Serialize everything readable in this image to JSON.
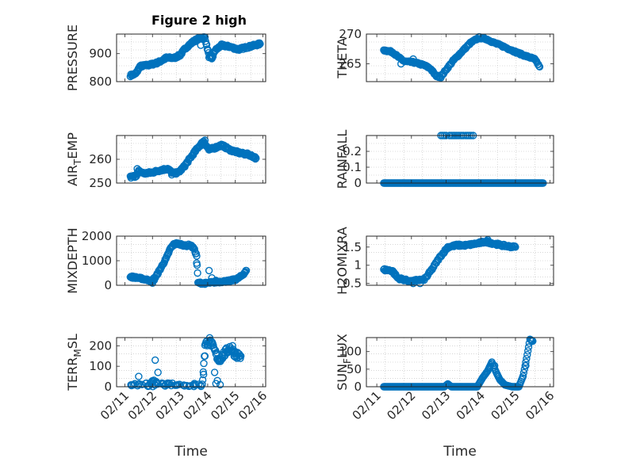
{
  "figure": {
    "title": "Figure 2 high",
    "marker_color": "#0072BD",
    "axis_color": "#262626"
  },
  "chart_data": [
    {
      "type": "scatter",
      "title": "Figure 2 high",
      "ylabel": "PRESSURE",
      "ylabel_sub": "",
      "ylim": [
        800,
        970
      ],
      "yticks": [
        800,
        900
      ],
      "xlim": [
        0,
        5.4
      ],
      "xticks": [
        0.3,
        1.3,
        2.3,
        3.3,
        4.3,
        5.3
      ],
      "xticklabels": [
        "02/11",
        "02/12",
        "02/13",
        "02/14",
        "02/15",
        "02/16"
      ],
      "xlabel": "",
      "keys": [
        [
          0.5,
          822
        ],
        [
          0.7,
          828
        ],
        [
          0.85,
          855
        ],
        [
          1.2,
          860
        ],
        [
          1.5,
          868
        ],
        [
          1.8,
          885
        ],
        [
          2.1,
          885
        ],
        [
          2.3,
          895
        ],
        [
          2.5,
          920
        ],
        [
          2.8,
          945
        ],
        [
          3.0,
          955
        ],
        [
          3.2,
          958
        ],
        [
          3.35,
          890
        ],
        [
          3.45,
          880
        ],
        [
          3.55,
          910
        ],
        [
          3.8,
          930
        ],
        [
          4.1,
          925
        ],
        [
          4.4,
          915
        ],
        [
          4.8,
          925
        ],
        [
          5.2,
          935
        ]
      ],
      "spikes": [
        [
          3.05,
          930
        ],
        [
          3.3,
          915
        ],
        [
          3.5,
          900
        ]
      ],
      "noise": 4
    },
    {
      "type": "scatter",
      "ylabel": "THETA",
      "ylabel_sub": "",
      "ylim": [
        262,
        270
      ],
      "yticks": [
        265,
        270
      ],
      "xlim": [
        0,
        5.4
      ],
      "xticks": [
        0.3,
        1.3,
        2.3,
        3.3,
        4.3,
        5.3
      ],
      "xticklabels": [
        "02/11",
        "02/12",
        "02/13",
        "02/14",
        "02/15",
        "02/16"
      ],
      "xlabel": "",
      "keys": [
        [
          0.5,
          267.3
        ],
        [
          0.75,
          267.0
        ],
        [
          0.9,
          266.2
        ],
        [
          1.1,
          265.4
        ],
        [
          1.4,
          265.2
        ],
        [
          1.65,
          264.8
        ],
        [
          1.85,
          264.2
        ],
        [
          2.0,
          263.0
        ],
        [
          2.15,
          262.8
        ],
        [
          2.3,
          264.0
        ],
        [
          2.5,
          265.5
        ],
        [
          2.75,
          267.0
        ],
        [
          3.0,
          268.5
        ],
        [
          3.25,
          269.4
        ],
        [
          3.45,
          269.2
        ],
        [
          3.7,
          268.5
        ],
        [
          4.0,
          267.8
        ],
        [
          4.3,
          267.0
        ],
        [
          4.6,
          266.3
        ],
        [
          4.85,
          265.8
        ],
        [
          5.0,
          264.5
        ]
      ],
      "spikes": [
        [
          1.0,
          265.0
        ],
        [
          1.35,
          265.8
        ],
        [
          2.1,
          262.9
        ]
      ],
      "noise": 0.15
    },
    {
      "type": "scatter",
      "ylabel": "AIR",
      "ylabel_sub": "T",
      "ylabel_tail": "EMP",
      "ylim": [
        250,
        270
      ],
      "yticks": [
        250,
        260
      ],
      "xlim": [
        0,
        5.4
      ],
      "xticks": [
        0.3,
        1.3,
        2.3,
        3.3,
        4.3,
        5.3
      ],
      "xticklabels": [
        "02/11",
        "02/12",
        "02/13",
        "02/14",
        "02/15",
        "02/16"
      ],
      "xlabel": "",
      "keys": [
        [
          0.5,
          252.5
        ],
        [
          0.7,
          253.0
        ],
        [
          0.8,
          255.0
        ],
        [
          1.0,
          254.0
        ],
        [
          1.3,
          254.5
        ],
        [
          1.6,
          255.5
        ],
        [
          1.85,
          256.0
        ],
        [
          2.05,
          254.0
        ],
        [
          2.25,
          254.5
        ],
        [
          2.45,
          257.0
        ],
        [
          2.7,
          261.0
        ],
        [
          2.95,
          265.0
        ],
        [
          3.15,
          267.5
        ],
        [
          3.35,
          264.0
        ],
        [
          3.6,
          265.0
        ],
        [
          3.8,
          266.0
        ],
        [
          4.1,
          264.0
        ],
        [
          4.5,
          262.5
        ],
        [
          4.8,
          262.0
        ],
        [
          5.05,
          260.5
        ]
      ],
      "spikes": [
        [
          0.75,
          256.0
        ],
        [
          2.0,
          253.5
        ],
        [
          3.2,
          268.0
        ]
      ],
      "noise": 0.5
    },
    {
      "type": "scatter",
      "ylabel": "RAINFALL",
      "ylabel_sub": "",
      "ylim": [
        0,
        0.3
      ],
      "yticks": [
        0,
        0.1,
        0.2
      ],
      "xlim": [
        0,
        5.4
      ],
      "xticks": [
        0.3,
        1.3,
        2.3,
        3.3,
        4.3,
        5.3
      ],
      "xticklabels": [
        "02/11",
        "02/12",
        "02/13",
        "02/14",
        "02/15",
        "02/16"
      ],
      "xlabel": "",
      "keys": [
        [
          0.5,
          0
        ],
        [
          5.1,
          0
        ]
      ],
      "extra": [
        [
          2.15,
          0.3
        ],
        [
          2.2,
          0.3
        ],
        [
          2.25,
          0.3
        ],
        [
          2.3,
          0.3
        ],
        [
          2.4,
          0.3
        ],
        [
          2.45,
          0.3
        ],
        [
          2.5,
          0.3
        ],
        [
          2.55,
          0.3
        ],
        [
          2.6,
          0.3
        ],
        [
          2.65,
          0.3
        ],
        [
          2.7,
          0.3
        ],
        [
          2.75,
          0.3
        ],
        [
          2.8,
          0.3
        ],
        [
          2.87,
          0.3
        ],
        [
          2.92,
          0.3
        ],
        [
          2.97,
          0.3
        ],
        [
          3.02,
          0.3
        ],
        [
          3.08,
          0.3
        ]
      ],
      "noise": 0
    },
    {
      "type": "scatter",
      "ylabel": "MIXDEPTH",
      "ylabel_sub": "",
      "ylim": [
        0,
        2000
      ],
      "yticks": [
        0,
        1000,
        2000
      ],
      "xlim": [
        0,
        5.4
      ],
      "xticks": [
        0.3,
        1.3,
        2.3,
        3.3,
        4.3,
        5.3
      ],
      "xticklabels": [
        "02/11",
        "02/12",
        "02/13",
        "02/14",
        "02/15",
        "02/16"
      ],
      "xlabel": "",
      "keys": [
        [
          0.5,
          350
        ],
        [
          0.8,
          300
        ],
        [
          1.0,
          250
        ],
        [
          1.2,
          200
        ],
        [
          1.3,
          120
        ],
        [
          1.45,
          400
        ],
        [
          1.6,
          700
        ],
        [
          1.8,
          1100
        ],
        [
          1.95,
          1500
        ],
        [
          2.1,
          1700
        ],
        [
          2.3,
          1680
        ],
        [
          2.5,
          1600
        ],
        [
          2.65,
          1650
        ],
        [
          2.8,
          1500
        ],
        [
          2.9,
          1200
        ],
        [
          2.95,
          100
        ],
        [
          3.2,
          80
        ],
        [
          3.5,
          120
        ],
        [
          3.8,
          150
        ],
        [
          4.1,
          180
        ],
        [
          4.35,
          250
        ],
        [
          4.55,
          400
        ],
        [
          4.7,
          600
        ]
      ],
      "spikes": [
        [
          1.35,
          300
        ],
        [
          1.5,
          500
        ],
        [
          2.9,
          900
        ],
        [
          3.35,
          600
        ],
        [
          3.45,
          300
        ],
        [
          3.6,
          200
        ],
        [
          4.2,
          250
        ]
      ],
      "noise": 40
    },
    {
      "type": "scatter",
      "ylabel": "H2OMIXRA",
      "ylabel_sub": "",
      "ylim": [
        0.45,
        1.8
      ],
      "yticks": [
        0.5,
        1,
        1.5
      ],
      "xlim": [
        0,
        5.4
      ],
      "xticks": [
        0.3,
        1.3,
        2.3,
        3.3,
        4.3,
        5.3
      ],
      "xticklabels": [
        "02/11",
        "02/12",
        "02/13",
        "02/14",
        "02/15",
        "02/16"
      ],
      "xlabel": "",
      "keys": [
        [
          0.5,
          0.88
        ],
        [
          0.75,
          0.85
        ],
        [
          0.9,
          0.65
        ],
        [
          1.1,
          0.6
        ],
        [
          1.3,
          0.55
        ],
        [
          1.5,
          0.6
        ],
        [
          1.65,
          0.6
        ],
        [
          1.75,
          0.7
        ],
        [
          1.9,
          0.9
        ],
        [
          2.1,
          1.2
        ],
        [
          2.35,
          1.5
        ],
        [
          2.6,
          1.55
        ],
        [
          2.9,
          1.55
        ],
        [
          3.2,
          1.6
        ],
        [
          3.45,
          1.65
        ],
        [
          3.65,
          1.6
        ],
        [
          3.9,
          1.55
        ],
        [
          4.1,
          1.52
        ],
        [
          4.3,
          1.5
        ]
      ],
      "spikes": [
        [
          0.8,
          0.75
        ],
        [
          1.35,
          0.5
        ],
        [
          1.55,
          0.5
        ],
        [
          1.85,
          0.85
        ],
        [
          3.5,
          1.7
        ],
        [
          3.8,
          1.6
        ]
      ],
      "noise": 0.03
    },
    {
      "type": "scatter",
      "ylabel": "TERR",
      "ylabel_sub": "M",
      "ylabel_tail": "SL",
      "ylim": [
        0,
        240
      ],
      "yticks": [
        0,
        100,
        200
      ],
      "xlim": [
        0,
        5.4
      ],
      "xticks": [
        0.3,
        1.3,
        2.3,
        3.3,
        4.3,
        5.3
      ],
      "xticklabels": [
        "02/11",
        "02/12",
        "02/13",
        "02/14",
        "02/15",
        "02/16"
      ],
      "xlabel": "Time",
      "keys": [
        [
          0.5,
          0
        ],
        [
          1.2,
          0
        ],
        [
          1.35,
          20
        ],
        [
          1.5,
          0
        ],
        [
          3.1,
          0
        ],
        [
          3.2,
          200
        ],
        [
          3.35,
          230
        ],
        [
          3.5,
          190
        ],
        [
          3.7,
          130
        ],
        [
          3.9,
          160
        ],
        [
          4.1,
          190
        ],
        [
          4.3,
          160
        ],
        [
          4.5,
          150
        ]
      ],
      "spikes": [
        [
          0.8,
          50
        ],
        [
          1.4,
          130
        ],
        [
          1.5,
          70
        ],
        [
          3.15,
          60
        ],
        [
          3.2,
          150
        ],
        [
          3.55,
          70
        ],
        [
          3.6,
          15
        ],
        [
          3.65,
          30
        ],
        [
          3.75,
          10
        ],
        [
          4.2,
          200
        ]
      ],
      "noise": 18
    },
    {
      "type": "scatter",
      "ylabel": "SUN",
      "ylabel_sub": "F",
      "ylabel_tail": "LUX",
      "ylim": [
        0,
        140
      ],
      "yticks": [
        0,
        50,
        100
      ],
      "xlim": [
        0,
        5.4
      ],
      "xticks": [
        0.3,
        1.3,
        2.3,
        3.3,
        4.3,
        5.3
      ],
      "xticklabels": [
        "02/11",
        "02/12",
        "02/13",
        "02/14",
        "02/15",
        "02/16"
      ],
      "xlabel": "Time",
      "keys": [
        [
          0.5,
          0
        ],
        [
          2.25,
          0
        ],
        [
          2.35,
          8
        ],
        [
          2.45,
          0
        ],
        [
          3.2,
          0
        ],
        [
          3.35,
          25
        ],
        [
          3.5,
          45
        ],
        [
          3.62,
          70
        ],
        [
          3.75,
          40
        ],
        [
          3.85,
          20
        ],
        [
          4.0,
          5
        ],
        [
          4.2,
          0
        ],
        [
          4.4,
          0
        ],
        [
          4.52,
          30
        ],
        [
          4.62,
          80
        ],
        [
          4.72,
          135
        ],
        [
          4.8,
          130
        ]
      ],
      "spikes": [
        [
          3.55,
          55
        ],
        [
          3.7,
          60
        ],
        [
          4.6,
          60
        ]
      ],
      "noise": 0
    }
  ]
}
